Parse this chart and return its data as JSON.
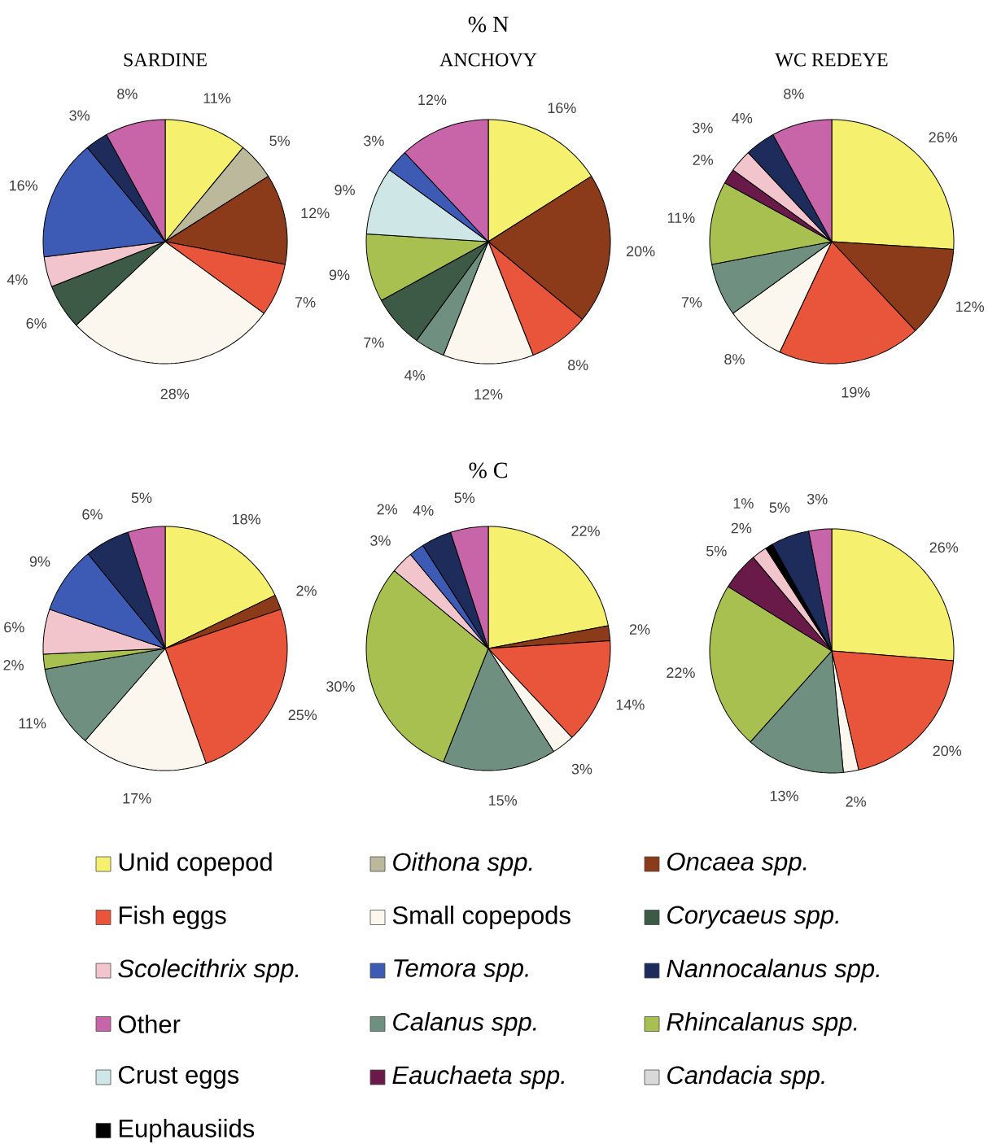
{
  "chart_data": [
    {
      "type": "other",
      "title": "% N"
    },
    {
      "type": "pie",
      "title": "SARDINE",
      "categories": [
        null,
        null,
        null,
        null,
        null,
        null,
        null,
        null,
        null,
        null
      ],
      "values": [
        11,
        5,
        12,
        7,
        28,
        6,
        4,
        16,
        3,
        8
      ],
      "colors": [
        "#f5f06e",
        "#bcb89c",
        "#8b3a1a",
        "#e8553a",
        "#fbf7ee",
        "#3c5a46",
        "#f2c4cc",
        "#3d5bb5",
        "#1e2c5c",
        "#c864a8"
      ],
      "value_labels": [
        "11%",
        "5%",
        "12%",
        "7%",
        "28%",
        "6%",
        "4%",
        "16%",
        "3%",
        "8%"
      ]
    },
    {
      "type": "pie",
      "title": "ANCHOVY",
      "categories": [
        null,
        null,
        null,
        null,
        null,
        null,
        null,
        null,
        null,
        null
      ],
      "values": [
        16,
        20,
        8,
        12,
        4,
        7,
        9,
        9,
        3,
        12
      ],
      "colors": [
        "#f5f06e",
        "#8b3a1a",
        "#e8553a",
        "#fbf7ee",
        "#6f8f80",
        "#3c5a46",
        "#a8c050",
        "#cfe6e6",
        "#3d5bb5",
        "#c864a8"
      ],
      "value_labels": [
        "16%",
        "20%",
        "8%",
        "12%",
        "4%",
        "7%",
        "9%",
        "9%",
        "3%",
        "12%"
      ]
    },
    {
      "type": "pie",
      "title": "WC REDEYE",
      "categories": [
        null,
        null,
        null,
        null,
        null,
        null,
        null,
        null,
        null,
        null
      ],
      "values": [
        26,
        12,
        19,
        8,
        7,
        11,
        2,
        3,
        4,
        8
      ],
      "colors": [
        "#f5f06e",
        "#8b3a1a",
        "#e8553a",
        "#fbf7ee",
        "#6f8f80",
        "#a8c050",
        "#6a1a48",
        "#f2c4cc",
        "#1e2c5c",
        "#c864a8"
      ],
      "value_labels": [
        "26%",
        "12%",
        "19%",
        "8%",
        "7%",
        "11%",
        "2%",
        "3%",
        "4%",
        "8%"
      ]
    },
    {
      "type": "other",
      "title": "% C"
    },
    {
      "type": "pie",
      "categories": [
        null,
        null,
        null,
        null,
        null,
        null,
        null,
        null,
        null,
        null
      ],
      "values": [
        18,
        2,
        25,
        17,
        11,
        2,
        6,
        9,
        6,
        5
      ],
      "colors": [
        "#f5f06e",
        "#8b3a1a",
        "#e8553a",
        "#fbf7ee",
        "#6f8f80",
        "#a8c050",
        "#f2c4cc",
        "#3d5bb5",
        "#1e2c5c",
        "#c864a8"
      ],
      "value_labels": [
        "18%",
        "2%",
        "25%",
        "17%",
        "11%",
        "2%",
        "6%",
        "9%",
        "6%",
        "5%"
      ]
    },
    {
      "type": "pie",
      "categories": [
        null,
        null,
        null,
        null,
        null,
        null,
        null,
        null,
        null,
        null
      ],
      "values": [
        22,
        2,
        14,
        3,
        15,
        30,
        3,
        2,
        4,
        5
      ],
      "colors": [
        "#f5f06e",
        "#8b3a1a",
        "#e8553a",
        "#fbf7ee",
        "#6f8f80",
        "#a8c050",
        "#f2c4cc",
        "#3d5bb5",
        "#1e2c5c",
        "#c864a8"
      ],
      "value_labels": [
        "22%",
        "2%",
        "14%",
        "3%",
        "15%",
        "30%",
        "3%",
        "2%",
        "4%",
        "5%"
      ]
    },
    {
      "type": "pie",
      "categories": [
        null,
        null,
        null,
        null,
        null,
        null,
        null,
        null,
        null,
        null
      ],
      "values": [
        26,
        20,
        2,
        13,
        22,
        5,
        2,
        1,
        5,
        3
      ],
      "colors": [
        "#f5f06e",
        "#e8553a",
        "#fbf7ee",
        "#6f8f80",
        "#a8c050",
        "#6a1a48",
        "#f2c4cc",
        "#000000",
        "#1e2c5c",
        "#c864a8"
      ],
      "value_labels": [
        "26%",
        "20%",
        "2%",
        "13%",
        "22%",
        "5%",
        "2%",
        "1%",
        "5%",
        "3%"
      ]
    },
    {
      "type": "other",
      "categories": [
        "Unid copepod",
        "*Oithona spp.*",
        "*Oncaea spp.*",
        "Fish eggs",
        "Small copepods",
        "*Corycaeus spp.*",
        "*Scolecithrix spp.*",
        "*Temora spp.*",
        "*Nannocalanus spp.*",
        "Other",
        "*Calanus spp.*",
        "*Rhincalanus spp.*",
        "Crust eggs",
        "*Eauchaeta spp.*",
        "*Candacia spp.*",
        "Euphausiids"
      ],
      "colors": [
        "#f5f06e",
        "#bcb89c",
        "#8b3a1a",
        "#e8553a",
        "#fbf7ee",
        "#3c5a46",
        "#f2c4cc",
        "#3d5bb5",
        "#1e2c5c",
        "#c864a8",
        "#6f8f80",
        "#a8c050",
        "#cfe6e6",
        "#6a1a48",
        "#d9d9d9",
        "#000000"
      ]
    }
  ]
}
